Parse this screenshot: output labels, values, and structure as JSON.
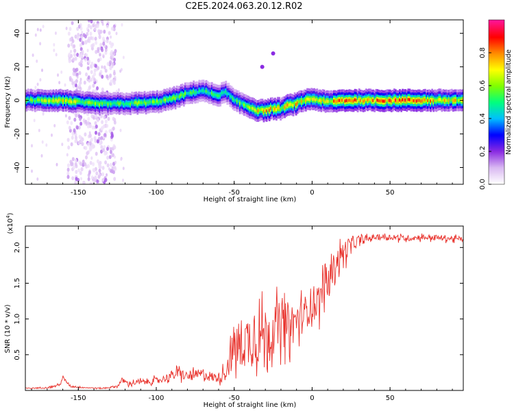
{
  "title": "C2E5.2024.063.20.12.R02",
  "chart_data": [
    {
      "type": "heatmap",
      "xlabel": "Height of straight line (km)",
      "ylabel": "Frequency (Hz)",
      "xlim": [
        -184,
        97
      ],
      "ylim": [
        -50,
        48
      ],
      "xticks": [
        -150,
        -100,
        -50,
        0,
        50
      ],
      "yticks": [
        -40,
        -20,
        0,
        20,
        40
      ],
      "colorbar": {
        "label": "Normalized spectral amplitude",
        "range": [
          0.0,
          1.0
        ],
        "ticks": [
          "0.0",
          "0.2",
          "0.4",
          "0.6",
          "0.8"
        ],
        "colormap": [
          "#ffffff",
          "#d9b8f2",
          "#8a2be2",
          "#0000ff",
          "#00bfff",
          "#00ff7f",
          "#7fff00",
          "#ffff00",
          "#ff8c00",
          "#ff0000",
          "#ff1493"
        ]
      },
      "ridge": {
        "description_points_x": [
          -184,
          -160,
          -140,
          -120,
          -100,
          -90,
          -80,
          -70,
          -65,
          -60,
          -55,
          -50,
          -45,
          -40,
          -35,
          -30,
          -25,
          -20,
          -15,
          -10,
          -5,
          0,
          10,
          20,
          40,
          60,
          80,
          97
        ],
        "center_freq": [
          0,
          0,
          -2,
          -2,
          -1,
          1,
          4,
          6,
          4,
          3,
          5,
          0,
          -2,
          -4,
          -6,
          -6,
          -5,
          -5,
          -3,
          -2,
          0,
          1,
          -1,
          0,
          0,
          0,
          0,
          0
        ],
        "peak_amplitude": [
          0.55,
          0.7,
          0.6,
          0.6,
          0.6,
          0.6,
          0.55,
          0.5,
          0.55,
          0.5,
          0.5,
          0.55,
          0.6,
          0.65,
          0.75,
          0.8,
          0.75,
          0.7,
          0.75,
          0.8,
          0.7,
          0.65,
          0.75,
          0.85,
          0.9,
          0.85,
          0.8,
          0.7
        ]
      },
      "noise_band": {
        "x_range": [
          -157,
          -126
        ],
        "freq_range": [
          -50,
          48
        ]
      },
      "isolated_points": [
        {
          "x": -32,
          "y": 20,
          "v": 0.2
        },
        {
          "x": -25,
          "y": 28,
          "v": 0.2
        }
      ]
    },
    {
      "type": "line",
      "xlabel": "Height of straight line (km)",
      "ylabel": "SNR (10 * v/v)",
      "y_multiplier_label": "(x10",
      "y_multiplier_exp": "4",
      "y_multiplier_close": ")",
      "xlim": [
        -184,
        97
      ],
      "ylim": [
        0,
        2.3
      ],
      "xticks": [
        -150,
        -100,
        -50,
        0,
        50
      ],
      "yticks": [
        0.5,
        1.0,
        1.5,
        2.0
      ],
      "ytick_labels": [
        "0.5",
        "1.0",
        "1.5",
        "2.0"
      ],
      "series": [
        {
          "color": "#e8302a",
          "x": [
            -184,
            -170,
            -162,
            -160,
            -155,
            -145,
            -135,
            -125,
            -122,
            -118,
            -110,
            -100,
            -95,
            -90,
            -85,
            -80,
            -75,
            -70,
            -65,
            -60,
            -55,
            -52,
            -50,
            -45,
            -40,
            -35,
            -30,
            -25,
            -20,
            -15,
            -10,
            -5,
            0,
            5,
            8,
            10,
            12,
            15,
            20,
            25,
            30,
            35,
            40,
            50,
            60,
            70,
            80,
            90,
            97
          ],
          "y": [
            0.03,
            0.04,
            0.08,
            0.18,
            0.06,
            0.04,
            0.03,
            0.06,
            0.15,
            0.1,
            0.12,
            0.14,
            0.17,
            0.22,
            0.25,
            0.2,
            0.22,
            0.24,
            0.2,
            0.18,
            0.3,
            0.5,
            0.65,
            0.7,
            0.75,
            0.8,
            0.85,
            0.9,
            0.95,
            0.95,
            1.0,
            1.1,
            1.25,
            1.3,
            1.55,
            1.5,
            1.65,
            1.8,
            1.95,
            2.05,
            2.1,
            2.12,
            2.15,
            2.15,
            2.13,
            2.15,
            2.14,
            2.13,
            2.12
          ],
          "jitter_amplitude": [
            0.01,
            0.01,
            0.02,
            0.03,
            0.02,
            0.01,
            0.01,
            0.02,
            0.04,
            0.04,
            0.05,
            0.06,
            0.06,
            0.08,
            0.1,
            0.08,
            0.09,
            0.1,
            0.09,
            0.08,
            0.15,
            0.3,
            0.4,
            0.45,
            0.5,
            0.5,
            0.45,
            0.45,
            0.4,
            0.4,
            0.35,
            0.3,
            0.3,
            0.3,
            0.3,
            0.3,
            0.25,
            0.22,
            0.2,
            0.15,
            0.08,
            0.06,
            0.05,
            0.05,
            0.05,
            0.05,
            0.05,
            0.05,
            0.05
          ]
        }
      ]
    }
  ]
}
